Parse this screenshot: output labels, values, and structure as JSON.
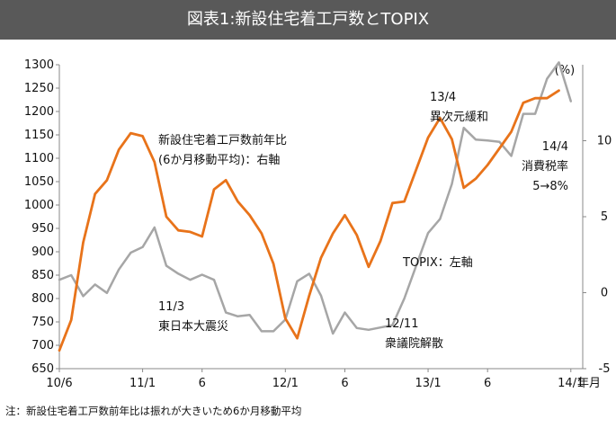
{
  "title": "図表1:新設住宅着工戸数とTOPIX",
  "note": "注：新設住宅着工戸数前年比は振れが大きいため6か月移動平均",
  "chart_data": {
    "type": "line",
    "x_tick_labels": [
      "10/6",
      "11/1",
      "6",
      "12/1",
      "6",
      "13/1",
      "6",
      "14/1"
    ],
    "x_tick_months": [
      0,
      7,
      12,
      19,
      24,
      31,
      36,
      43
    ],
    "x_unit_label": "年月",
    "left_axis": {
      "min": 650,
      "max": 1300,
      "step": 50,
      "ticks": [
        "650",
        "700",
        "750",
        "800",
        "850",
        "900",
        "950",
        "1000",
        "1050",
        "1100",
        "1150",
        "1200",
        "1250",
        "1300"
      ]
    },
    "right_axis": {
      "unit": "(%)",
      "min": -5,
      "max": 15,
      "step": 5,
      "ticks": [
        "-5",
        "0",
        "5",
        "10"
      ],
      "tick_values": [
        -5,
        0,
        5,
        10
      ],
      "tick_colors": [
        "#e0301e",
        "#111111",
        "#111111",
        "#111111"
      ]
    },
    "series": [
      {
        "name": "TOPIX",
        "axis": "left",
        "color": "#a6a6a6",
        "values": [
          840,
          850,
          805,
          830,
          812,
          862,
          898,
          910,
          952,
          870,
          853,
          840,
          851,
          840,
          770,
          762,
          765,
          730,
          730,
          755,
          837,
          853,
          806,
          725,
          770,
          737,
          733,
          738,
          743,
          800,
          870,
          940,
          970,
          1045,
          1165,
          1140,
          1138,
          1135,
          1105,
          1195,
          1195,
          1270,
          1305,
          1222
        ]
      },
      {
        "name": "新設住宅着工戸数前年比",
        "axis": "right",
        "color": "#e8731a",
        "values": [
          -3.8,
          -1.8,
          3.3,
          6.5,
          7.4,
          9.4,
          10.5,
          10.3,
          8.6,
          5.0,
          4.1,
          4.0,
          3.7,
          6.8,
          7.4,
          6.0,
          5.1,
          3.9,
          1.9,
          -1.7,
          -3.0,
          -0.2,
          2.3,
          3.9,
          5.1,
          3.8,
          1.7,
          3.4,
          5.9,
          6.0,
          8.1,
          10.2,
          11.5,
          10.1,
          6.9,
          7.5,
          8.4,
          9.5,
          10.6,
          12.5,
          12.8,
          12.8,
          13.3
        ]
      }
    ],
    "annotations": [
      {
        "text": [
          "新設住宅着工戸数前年比",
          "(6か月移動平均)：右軸"
        ],
        "color": "#111111"
      },
      {
        "text": [
          "13/4",
          "異次元緩和"
        ],
        "color": "#111111"
      },
      {
        "text": [
          "14/4",
          "消費税率",
          "5→8%"
        ],
        "color": "#e0301e"
      },
      {
        "text": [
          "TOPIX：左軸"
        ],
        "color": "#111111"
      },
      {
        "text": [
          "11/3",
          "東日本大震災"
        ],
        "color": "#111111"
      },
      {
        "text": [
          "12/11",
          "衆議院解散"
        ],
        "color": "#111111"
      }
    ]
  }
}
